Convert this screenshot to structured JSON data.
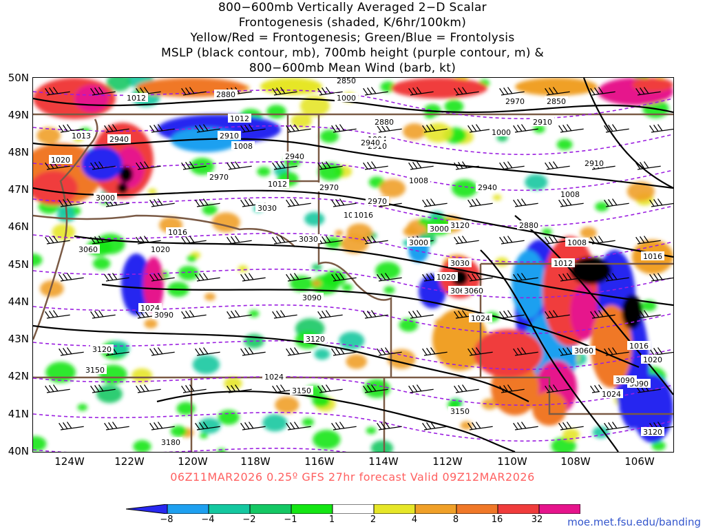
{
  "title": {
    "line1": "800−600mb Vertically Averaged 2−D Scalar",
    "line2": "Frontogenesis (shaded, K/6hr/100km)",
    "line3": "Yellow/Red = Frontogenesis;  Green/Blue = Frontolysis",
    "line4": "MSLP (black contour, mb), 700mb height (purple contour, m) &",
    "line5": "800−600mb Mean Wind (barb, kt)"
  },
  "axes": {
    "lat_labels": [
      "50N",
      "49N",
      "48N",
      "47N",
      "46N",
      "45N",
      "44N",
      "43N",
      "42N",
      "41N",
      "40N"
    ],
    "lon_labels": [
      "124W",
      "122W",
      "120W",
      "118W",
      "116W",
      "114W",
      "112W",
      "110W",
      "108W",
      "106W"
    ]
  },
  "contour_labels": {
    "mslp": [
      "1012",
      "1013",
      "1020",
      "1016",
      "1008",
      "1000",
      "1004",
      "1012",
      "1016",
      "1020",
      "1024",
      "1016",
      "1020",
      "1012",
      "1024",
      "1008",
      "1000",
      "1008",
      "1016",
      "1024",
      "1024",
      "1020",
      "1016",
      "1012",
      "1004",
      "1008"
    ],
    "height": [
      "2880",
      "2910",
      "2940",
      "2910",
      "2940",
      "2970",
      "3000",
      "3030",
      "3060",
      "3000",
      "2970",
      "3030",
      "3060",
      "3090",
      "3120",
      "3120",
      "3150",
      "3150",
      "3180",
      "3120",
      "3090",
      "3060",
      "3090",
      "3030",
      "3060",
      "3120",
      "3090",
      "3150",
      "2850",
      "2880",
      "2910",
      "2940",
      "2970",
      "3000",
      "2880",
      "2910",
      "2940",
      "2970",
      "2850"
    ]
  },
  "colorbar": {
    "labels": [
      "−8",
      "−4",
      "−2",
      "−1",
      "1",
      "2",
      "4",
      "8",
      "16",
      "32"
    ],
    "colors": [
      "#2828f0",
      "#1ea0f0",
      "#14c8a0",
      "#14c864",
      "#14e614",
      "#ffffff",
      "#e6e628",
      "#f0a028",
      "#f07828",
      "#f03c3c",
      "#e6148c",
      "#000000",
      "#b4b4b4"
    ]
  },
  "footer": {
    "caption": "06Z11MAR2026 0.25º GFS 27hr forecast Valid 09Z12MAR2026",
    "credit": "moe.met.fsu.edu/banding"
  },
  "map": {
    "region": "Pacific Northwest / Northern Rockies",
    "lat_range": [
      40,
      50
    ],
    "lon_range": [
      -125,
      -105
    ]
  }
}
